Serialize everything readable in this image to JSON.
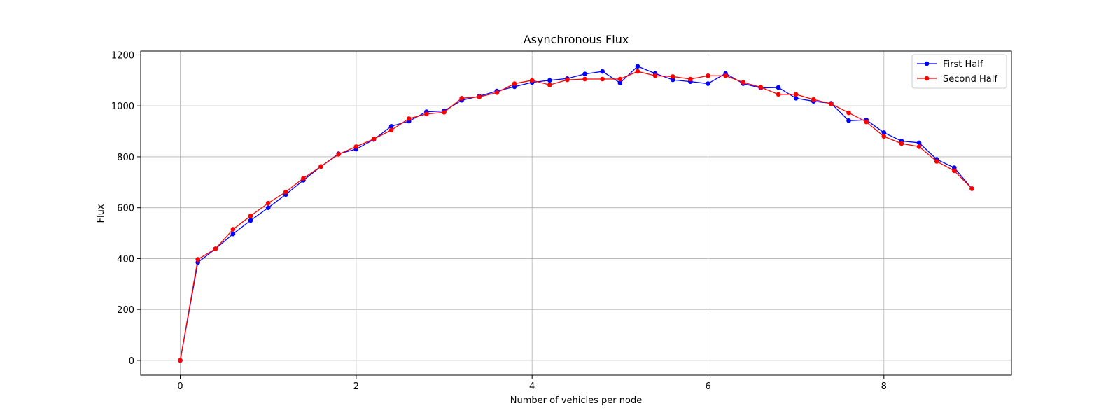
{
  "chart_data": {
    "type": "line",
    "title": "Asynchronous Flux",
    "xlabel": "Number of vehicles per node",
    "ylabel": "Flux",
    "xlim": [
      -0.45,
      9.45
    ],
    "ylim": [
      -58,
      1215
    ],
    "xticks": [
      0,
      2,
      4,
      6,
      8
    ],
    "yticks": [
      0,
      200,
      400,
      600,
      800,
      1000,
      1200
    ],
    "grid": true,
    "legend_position": "top-right",
    "x": [
      0,
      0.2,
      0.4,
      0.6,
      0.8,
      1.0,
      1.2,
      1.4,
      1.6,
      1.8,
      2.0,
      2.2,
      2.4,
      2.6,
      2.8,
      3.0,
      3.2,
      3.4,
      3.6,
      3.8,
      4.0,
      4.2,
      4.4,
      4.6,
      4.8,
      5.0,
      5.2,
      5.4,
      5.6,
      5.8,
      6.0,
      6.2,
      6.4,
      6.6,
      6.8,
      7.0,
      7.2,
      7.4,
      7.6,
      7.8,
      8.0,
      8.2,
      8.4,
      8.6,
      8.8,
      9.0
    ],
    "series": [
      {
        "name": "First Half",
        "color": "#0000ff",
        "values": [
          0,
          385,
          438,
          497,
          550,
          600,
          652,
          708,
          762,
          812,
          830,
          868,
          920,
          940,
          977,
          980,
          1022,
          1038,
          1058,
          1075,
          1092,
          1100,
          1107,
          1125,
          1135,
          1090,
          1155,
          1127,
          1102,
          1095,
          1087,
          1127,
          1087,
          1070,
          1072,
          1030,
          1018,
          1010,
          942,
          945,
          895,
          862,
          855,
          790,
          757,
          675
        ]
      },
      {
        "name": "Second Half",
        "color": "#ff0000",
        "values": [
          0,
          397,
          438,
          515,
          568,
          618,
          662,
          716,
          762,
          810,
          840,
          870,
          905,
          950,
          968,
          975,
          1030,
          1035,
          1052,
          1087,
          1100,
          1082,
          1102,
          1105,
          1105,
          1105,
          1135,
          1118,
          1115,
          1105,
          1118,
          1118,
          1092,
          1073,
          1045,
          1045,
          1025,
          1008,
          973,
          937,
          880,
          852,
          840,
          782,
          745,
          675
        ]
      }
    ]
  }
}
